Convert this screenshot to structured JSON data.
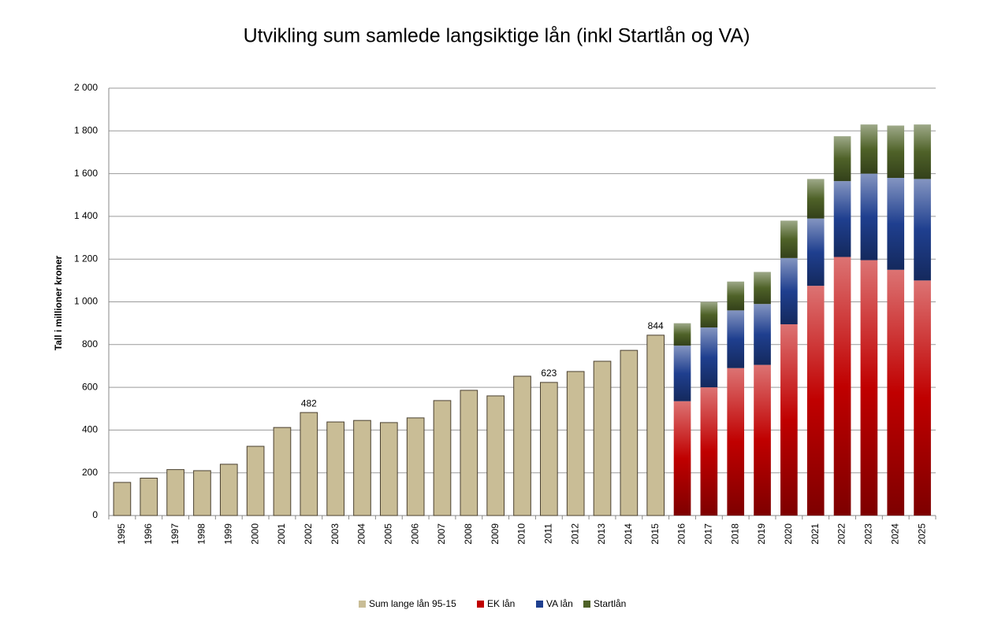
{
  "chart_data": {
    "type": "stacked_bar",
    "title": "Utvikling sum samlede langsiktige lån (inkl Startlån og VA)",
    "y_label": "Tall i millioner kroner",
    "categories": [
      "1995",
      "1996",
      "1997",
      "1998",
      "1999",
      "2000",
      "2001",
      "2002",
      "2003",
      "2004",
      "2005",
      "2006",
      "2007",
      "2008",
      "2009",
      "2010",
      "2011",
      "2012",
      "2013",
      "2014",
      "2015",
      "2016",
      "2017",
      "2018",
      "2019",
      "2020",
      "2021",
      "2022",
      "2023",
      "2024",
      "2025"
    ],
    "series": [
      {
        "name": "Sum lange lån 95-15",
        "color": "#c9bd96",
        "values": [
          155,
          175,
          215,
          210,
          240,
          324,
          412,
          482,
          438,
          445,
          435,
          457,
          538,
          586,
          560,
          652,
          623,
          674,
          722,
          773,
          844,
          null,
          null,
          null,
          null,
          null,
          null,
          null,
          null,
          null,
          null
        ],
        "value_labels": [
          null,
          null,
          null,
          null,
          null,
          null,
          null,
          "482",
          null,
          null,
          null,
          null,
          null,
          null,
          null,
          null,
          "623",
          null,
          null,
          null,
          "844",
          null,
          null,
          null,
          null,
          null,
          null,
          null,
          null,
          null,
          null
        ]
      },
      {
        "name": "EK lån",
        "color": "#c00000",
        "values": [
          null,
          null,
          null,
          null,
          null,
          null,
          null,
          null,
          null,
          null,
          null,
          null,
          null,
          null,
          null,
          null,
          null,
          null,
          null,
          null,
          null,
          535,
          600,
          690,
          705,
          895,
          1075,
          1210,
          1195,
          1150,
          1100
        ]
      },
      {
        "name": "VA lån",
        "color": "#1f3f8f",
        "values": [
          null,
          null,
          null,
          null,
          null,
          null,
          null,
          null,
          null,
          null,
          null,
          null,
          null,
          null,
          null,
          null,
          null,
          null,
          null,
          null,
          null,
          260,
          280,
          270,
          285,
          310,
          315,
          355,
          405,
          430,
          475
        ]
      },
      {
        "name": "Startlån",
        "color": "#4f6228",
        "values": [
          null,
          null,
          null,
          null,
          null,
          null,
          null,
          null,
          null,
          null,
          null,
          null,
          null,
          null,
          null,
          null,
          null,
          null,
          null,
          null,
          null,
          105,
          120,
          135,
          150,
          175,
          185,
          210,
          230,
          245,
          255
        ]
      }
    ],
    "ylim": [
      0,
      2000
    ],
    "yticks": [
      0,
      200,
      400,
      600,
      800,
      {
        "value": 1000,
        "label": "1 000"
      },
      {
        "value": 1200,
        "label": "1 200"
      },
      {
        "value": 1400,
        "label": "1 400"
      },
      {
        "value": 1600,
        "label": "1 600"
      },
      {
        "value": 1800,
        "label": "1 800"
      },
      {
        "value": 2000,
        "label": "2 000"
      }
    ],
    "grid": true,
    "legend": "bottom"
  }
}
